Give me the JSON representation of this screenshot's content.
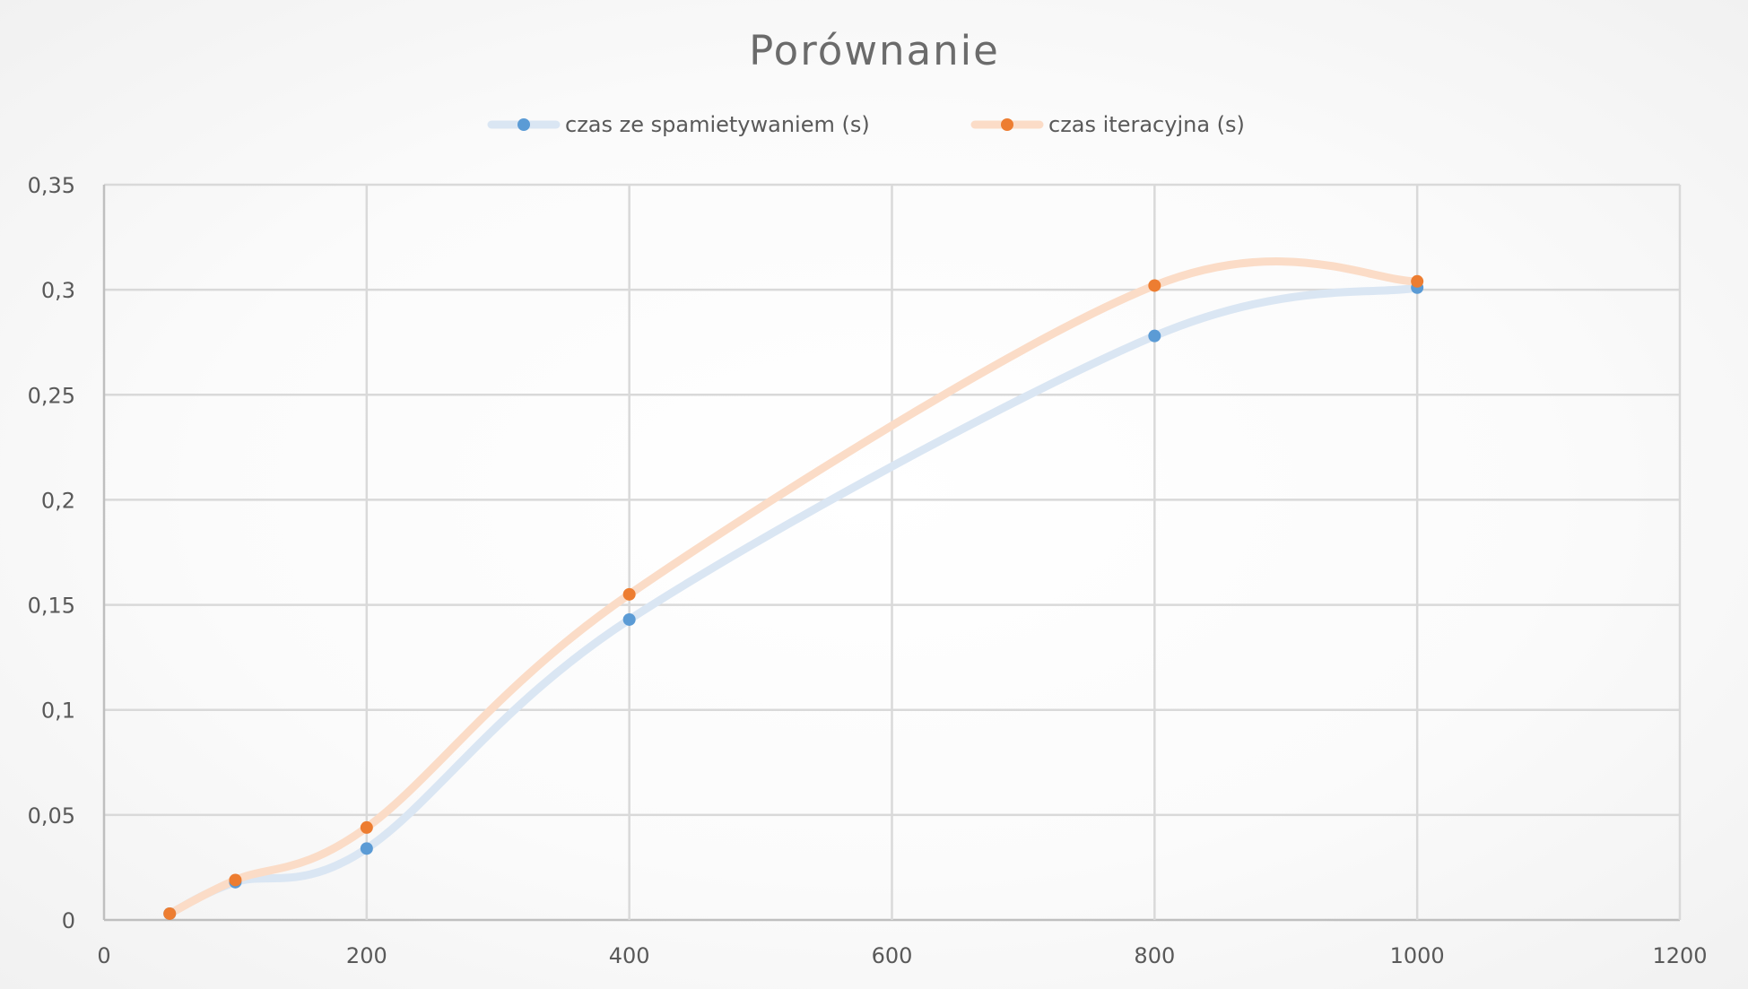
{
  "chart_data": {
    "type": "scatter",
    "title": "Porównanie",
    "xlabel": "",
    "ylabel": "",
    "xlim": [
      0,
      1200
    ],
    "ylim": [
      0,
      0.35
    ],
    "x_ticks": [
      0,
      200,
      400,
      600,
      800,
      1000,
      1200
    ],
    "x_tick_labels": [
      "0",
      "200",
      "400",
      "600",
      "800",
      "1000",
      "1200"
    ],
    "y_ticks": [
      0,
      0.05,
      0.1,
      0.15,
      0.2,
      0.25,
      0.3,
      0.35
    ],
    "y_tick_labels": [
      "0",
      "0,05",
      "0,1",
      "0,15",
      "0,2",
      "0,25",
      "0,3",
      "0,35"
    ],
    "grid": true,
    "smooth_lines": true,
    "legend_position": "top",
    "series": [
      {
        "name": "czas ze spamietywaniem (s)",
        "marker_color": "#5b9bd5",
        "line_color": "#dae6f3",
        "x": [
          50,
          100,
          200,
          400,
          800,
          1000
        ],
        "y": [
          0.003,
          0.018,
          0.034,
          0.143,
          0.278,
          0.301
        ]
      },
      {
        "name": "czas iteracyjna (s)",
        "marker_color": "#ed7d31",
        "line_color": "#fbdcc7",
        "x": [
          50,
          100,
          200,
          400,
          800,
          1000
        ],
        "y": [
          0.003,
          0.019,
          0.044,
          0.155,
          0.302,
          0.304
        ]
      }
    ]
  }
}
